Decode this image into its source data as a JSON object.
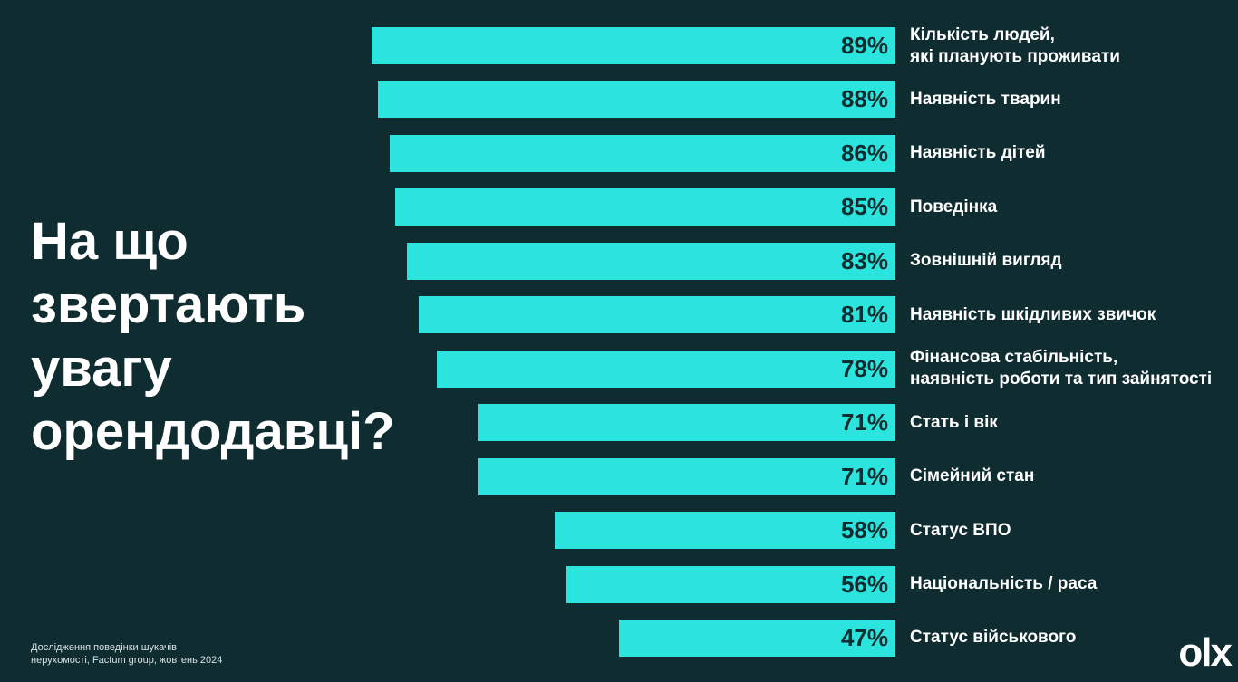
{
  "chart_data": {
    "type": "bar",
    "orientation": "horizontal-left",
    "title": "На що звертають увагу орендодавці?",
    "categories": [
      "Кількість людей,\nякі планують проживати",
      "Наявність тварин",
      "Наявність дітей",
      "Поведінка",
      "Зовнішній вигляд",
      "Наявність шкідливих звичок",
      "Фінансова стабільність,\nнаявність роботи та тип зайнятості",
      "Стать і вік",
      "Сімейний стан",
      "Статус ВПО",
      "Національність / раса",
      "Статус військового"
    ],
    "values": [
      89,
      88,
      86,
      85,
      83,
      81,
      78,
      71,
      71,
      58,
      56,
      47
    ],
    "value_labels": [
      "89%",
      "88%",
      "86%",
      "85%",
      "83%",
      "81%",
      "78%",
      "71%",
      "71%",
      "58%",
      "56%",
      "47%"
    ],
    "color": "#2ae4dd",
    "source": "Дослідження поведінки шукачів\nнерухомості, Factum group, жовтень 2024",
    "logo": "olx"
  }
}
